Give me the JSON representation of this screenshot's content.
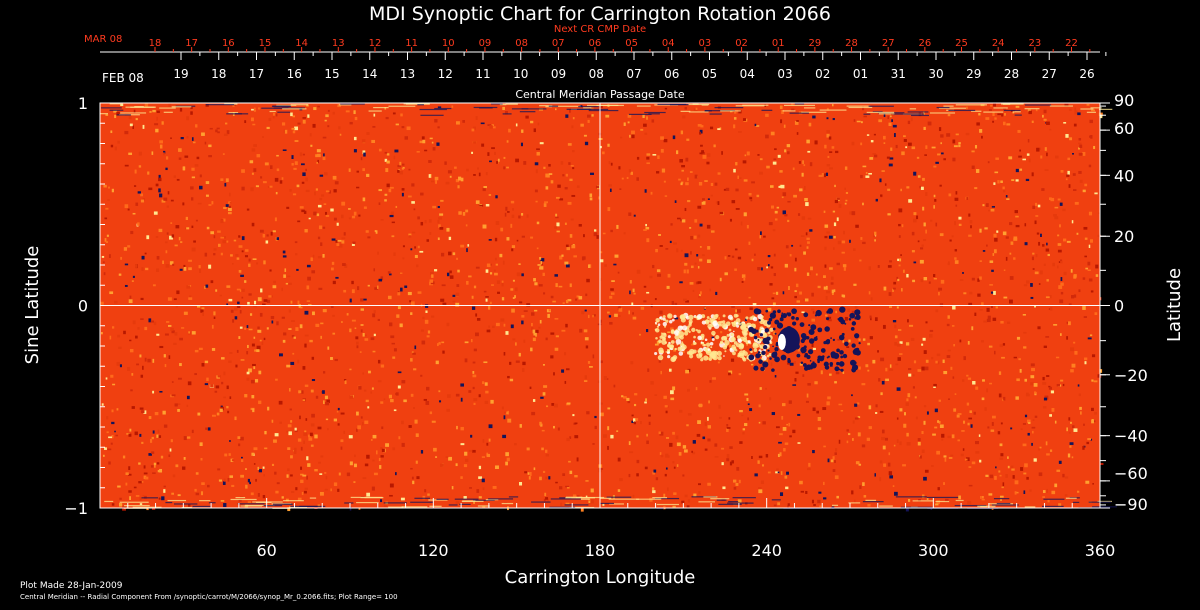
{
  "title": "MDI Synoptic Chart for Carrington Rotation 2066",
  "top_axis": {
    "red_label": "Next CR CMP Date",
    "red_month": "MAR 08",
    "red_days": [
      "18",
      "17",
      "16",
      "15",
      "14",
      "13",
      "12",
      "11",
      "10",
      "09",
      "08",
      "07",
      "06",
      "05",
      "04",
      "03",
      "02",
      "01",
      "29",
      "28",
      "27",
      "26",
      "25",
      "24",
      "23",
      "22"
    ],
    "white_month": "FEB 08",
    "white_days": [
      "19",
      "18",
      "17",
      "16",
      "15",
      "14",
      "13",
      "12",
      "11",
      "10",
      "09",
      "08",
      "07",
      "06",
      "05",
      "04",
      "03",
      "02",
      "01",
      "31",
      "30",
      "29",
      "28",
      "27",
      "26"
    ],
    "caption": "Central Meridian Passage Date"
  },
  "colors": {
    "background": "#000000",
    "map_base": "#f04010",
    "positive": "#ffe890",
    "negative": "#14145a",
    "red_axis": "#ff3b1f"
  },
  "chart_data": {
    "type": "heatmap",
    "xlabel": "Carrington Longitude",
    "ylabel_left": "Sine Latitude",
    "ylabel_right": "Latitude",
    "xlim": [
      0,
      360
    ],
    "ylim": [
      -1,
      1
    ],
    "x_ticks": [
      60,
      120,
      180,
      240,
      300,
      360
    ],
    "y_ticks_left": [
      {
        "value": 1,
        "label": "1"
      },
      {
        "value": 0,
        "label": "0"
      },
      {
        "value": -1,
        "label": "−1"
      }
    ],
    "y_ticks_right": [
      {
        "deg": 90,
        "label": "90"
      },
      {
        "deg": 60,
        "label": "60"
      },
      {
        "deg": 40,
        "label": "40"
      },
      {
        "deg": 20,
        "label": "20"
      },
      {
        "deg": 0,
        "label": "0"
      },
      {
        "deg": -20,
        "label": "−20"
      },
      {
        "deg": -40,
        "label": "−40"
      },
      {
        "deg": -60,
        "label": "−60"
      },
      {
        "deg": -90,
        "label": "−90"
      }
    ],
    "crosshair": {
      "longitude": 180,
      "sine_latitude": 0
    },
    "active_region": {
      "longitude": 240,
      "sine_latitude": -0.17,
      "positive_from": 200,
      "negative_at": 248
    }
  },
  "footer": {
    "made": "Plot Made 28-Jan-2009",
    "description": "Central Meridian -- Radial Component From /synoptic/carrot/M/2066/synop_Mr_0.2066.fits; Plot Range=  100"
  }
}
